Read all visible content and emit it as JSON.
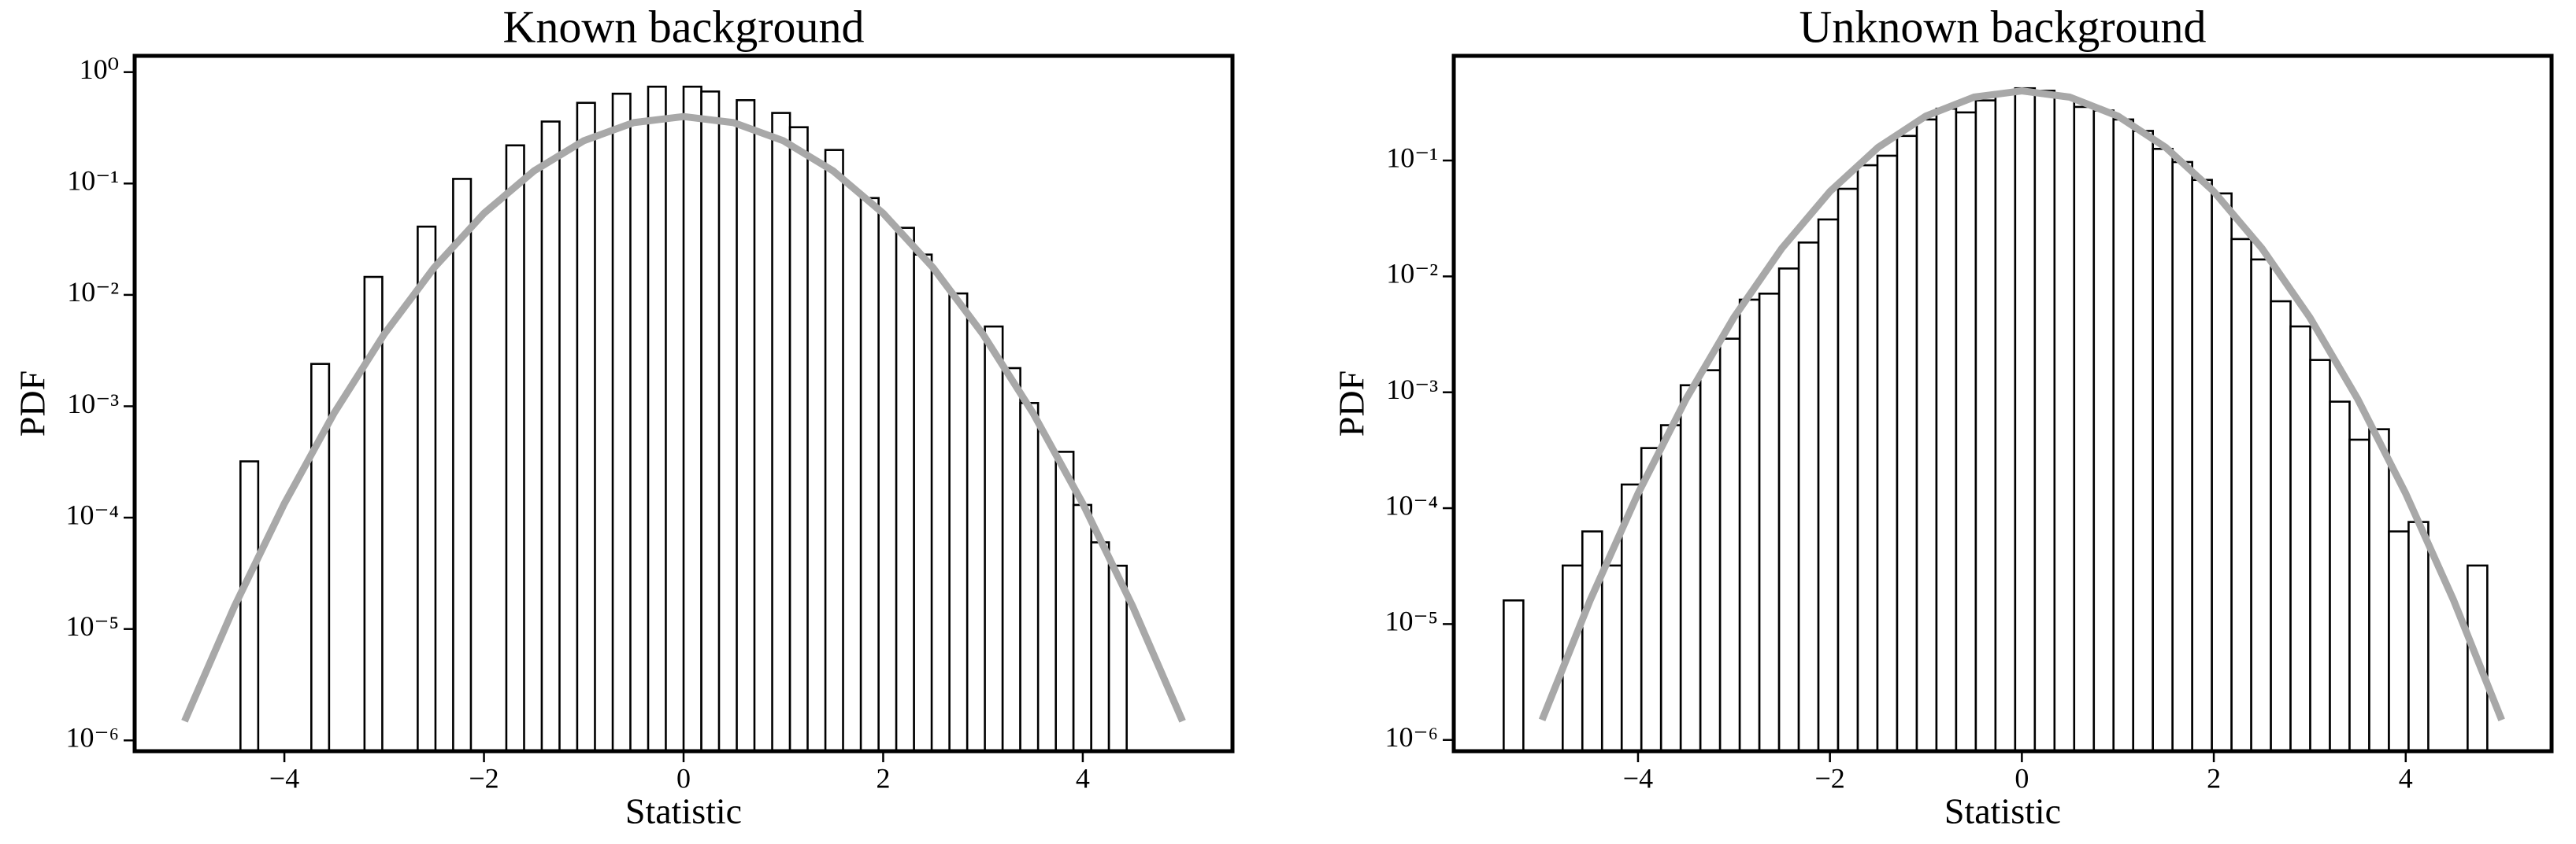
{
  "chart_data": [
    {
      "type": "histogram",
      "title": "Known background",
      "xlabel": "Statistic",
      "ylabel": "PDF",
      "yscale": "log",
      "bar_color": "#ffffff",
      "edge_color": "#000000",
      "xlim": [
        -5.5,
        5.5
      ],
      "ylim": [
        8e-07,
        1.4
      ],
      "xticks": [
        {
          "value": -4,
          "label": "−4"
        },
        {
          "value": -2,
          "label": "−2"
        },
        0,
        2,
        4
      ],
      "yticks": [
        {
          "value": 1e-06,
          "label": "10⁻⁶"
        },
        {
          "value": 1e-05,
          "label": "10⁻⁵"
        },
        {
          "value": 0.0001,
          "label": "10⁻⁴"
        },
        {
          "value": 0.001,
          "label": "10⁻³"
        },
        {
          "value": 0.01,
          "label": "10⁻²"
        },
        {
          "value": 0.1,
          "label": "10⁻¹"
        },
        {
          "value": 1,
          "label": "10⁰"
        }
      ],
      "bins": [
        -4.44,
        -4.262,
        -4.085,
        -3.907,
        -3.73,
        -3.552,
        -3.374,
        -3.197,
        -3.019,
        -2.842,
        -2.664,
        -2.486,
        -2.309,
        -2.131,
        -1.954,
        -1.776,
        -1.598,
        -1.421,
        -1.243,
        -1.066,
        -0.888,
        -0.71,
        -0.533,
        -0.355,
        -0.178,
        0,
        0.178,
        0.355,
        0.533,
        0.71,
        0.888,
        1.066,
        1.243,
        1.421,
        1.598,
        1.776,
        1.954,
        2.131,
        2.309,
        2.486,
        2.664,
        2.842,
        3.019,
        3.197,
        3.374,
        3.552,
        3.73,
        3.907,
        4.085,
        4.262,
        4.44
      ],
      "values": [
        0.00032,
        0,
        0,
        0,
        0.0024,
        0,
        0,
        0.0145,
        0,
        0,
        0.041,
        0,
        0.11,
        0,
        0,
        0.22,
        0,
        0.36,
        0,
        0.53,
        0,
        0.64,
        0,
        0.74,
        0,
        0.74,
        0.67,
        0,
        0.56,
        0,
        0.43,
        0.32,
        0,
        0.2,
        0,
        0.074,
        0,
        0.04,
        0.023,
        0,
        0.0103,
        0,
        0.0052,
        0.0022,
        0.00107,
        0,
        0.00039,
        0.00013,
        6e-05,
        3.7e-05
      ],
      "curve": {
        "color": "#a8a8a8",
        "x": [
          -5,
          -4.5,
          -4,
          -3.5,
          -3,
          -2.5,
          -2,
          -1.5,
          -1,
          -0.5,
          0,
          0.5,
          1,
          1.5,
          2,
          2.5,
          3,
          3.5,
          4,
          4.5,
          5
        ],
        "values": [
          1.487e-06,
          1.598e-05,
          0.0001338,
          0.0008727,
          0.004432,
          0.01753,
          0.05399,
          0.1295,
          0.242,
          0.3521,
          0.3989,
          0.3521,
          0.242,
          0.1295,
          0.05399,
          0.01753,
          0.004432,
          0.0008727,
          0.0001338,
          1.598e-05,
          1.487e-06
        ]
      }
    },
    {
      "type": "histogram",
      "title": "Unknown background",
      "xlabel": "Statistic",
      "ylabel": "PDF",
      "yscale": "log",
      "bar_color": "#ffffff",
      "edge_color": "#000000",
      "xlim": [
        -5.92,
        5.52
      ],
      "ylim": [
        8e-07,
        0.8
      ],
      "xticks": [
        {
          "value": -4,
          "label": "−4"
        },
        {
          "value": -2,
          "label": "−2"
        },
        0,
        2,
        4
      ],
      "yticks": [
        {
          "value": 1e-06,
          "label": "10⁻⁶"
        },
        {
          "value": 1e-05,
          "label": "10⁻⁵"
        },
        {
          "value": 0.0001,
          "label": "10⁻⁴"
        },
        {
          "value": 0.001,
          "label": "10⁻³"
        },
        {
          "value": 0.01,
          "label": "10⁻²"
        },
        {
          "value": 0.1,
          "label": "10⁻¹"
        }
      ],
      "bins": [
        -5.4,
        -5.195,
        -4.99,
        -4.785,
        -4.58,
        -4.375,
        -4.17,
        -3.965,
        -3.76,
        -3.555,
        -3.35,
        -3.145,
        -2.94,
        -2.735,
        -2.53,
        -2.325,
        -2.12,
        -1.915,
        -1.71,
        -1.505,
        -1.3,
        -1.095,
        -0.89,
        -0.685,
        -0.48,
        -0.275,
        -0.07,
        0.135,
        0.34,
        0.545,
        0.75,
        0.955,
        1.16,
        1.365,
        1.57,
        1.775,
        1.98,
        2.185,
        2.39,
        2.595,
        2.8,
        3.005,
        3.21,
        3.415,
        3.62,
        3.825,
        4.03,
        4.235,
        4.44,
        4.645,
        4.85
      ],
      "values": [
        1.6e-05,
        0,
        0,
        3.2e-05,
        6.3e-05,
        3.2e-05,
        0.00016,
        0.00033,
        0.00052,
        0.00115,
        0.00155,
        0.0029,
        0.0063,
        0.0071,
        0.0117,
        0.0196,
        0.031,
        0.057,
        0.091,
        0.11,
        0.163,
        0.226,
        0.28,
        0.26,
        0.33,
        0.39,
        0.42,
        0.4,
        0.355,
        0.29,
        0.27,
        0.226,
        0.18,
        0.126,
        0.097,
        0.068,
        0.052,
        0.021,
        0.014,
        0.0061,
        0.0037,
        0.0019,
        0.00083,
        0.00039,
        0.00048,
        6.3e-05,
        7.6e-05,
        0,
        0,
        3.2e-05
      ],
      "curve": {
        "color": "#a8a8a8",
        "x": [
          -5,
          -4.5,
          -4,
          -3.5,
          -3,
          -2.5,
          -2,
          -1.5,
          -1,
          -0.5,
          0,
          0.5,
          1,
          1.5,
          2,
          2.5,
          3,
          3.5,
          4,
          4.5,
          5
        ],
        "values": [
          1.487e-06,
          1.598e-05,
          0.0001338,
          0.0008727,
          0.004432,
          0.01753,
          0.05399,
          0.1295,
          0.242,
          0.3521,
          0.3989,
          0.3521,
          0.242,
          0.1295,
          0.05399,
          0.01753,
          0.004432,
          0.0008727,
          0.0001338,
          1.598e-05,
          1.487e-06
        ]
      }
    }
  ]
}
